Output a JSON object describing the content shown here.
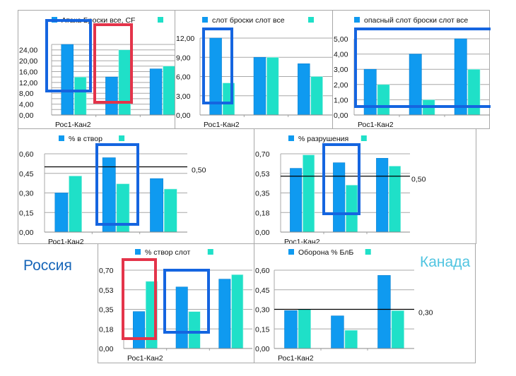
{
  "colors": {
    "series_primary": "#0f9af0",
    "series_secondary": "#1fe0c8",
    "highlight_blue": "#1565e0",
    "highlight_red": "#e4344a",
    "threshold": "#000000",
    "grid": "#a8a8a8",
    "russia_text": "#1565b8",
    "canada_text": "#4fc4e0"
  },
  "labels": {
    "russia": "Россия",
    "canada": "Канада"
  },
  "chart_data": [
    {
      "id": "attack",
      "type": "bar",
      "title": "Атака Броски все, CF",
      "legend": [
        "Атака Броски все, CF",
        ""
      ],
      "legend_position": "top",
      "categories": [
        "Рос1-Кан2",
        "",
        ""
      ],
      "category_label": "Рос1-Кан2",
      "series": [
        {
          "name": "Россия",
          "values": [
            26,
            14,
            17
          ]
        },
        {
          "name": "Канада",
          "values": [
            14,
            24,
            18
          ]
        }
      ],
      "ylim": [
        0,
        26
      ],
      "yticks": [
        0,
        4,
        8,
        12,
        16,
        20,
        24
      ],
      "ytick_labels": [
        "0,00",
        "4,00",
        "8,00",
        "12,00",
        "16,00",
        "20,00",
        "24,00"
      ],
      "grid_step": 2,
      "highlights": [
        {
          "color": "blue",
          "category": 0,
          "series": "primary"
        },
        {
          "color": "red",
          "category": 1,
          "series": "secondary"
        }
      ]
    },
    {
      "id": "slot_shots",
      "type": "bar",
      "title": "слот броски слот все",
      "legend": [
        "слот броски слот все",
        ""
      ],
      "legend_position": "top",
      "categories": [
        "Рос1-Кан2",
        "",
        ""
      ],
      "category_label": "Рос1-Кан2",
      "series": [
        {
          "name": "Россия",
          "values": [
            12,
            9,
            8
          ]
        },
        {
          "name": "Канада",
          "values": [
            5,
            9,
            6
          ]
        }
      ],
      "ylim": [
        0,
        12
      ],
      "yticks": [
        0,
        3,
        6,
        9,
        12
      ],
      "ytick_labels": [
        "0,00",
        "3,00",
        "6,00",
        "9,00",
        "12,00"
      ],
      "grid_step": 3,
      "highlights": [
        {
          "color": "blue",
          "category": 0,
          "series": "both"
        }
      ]
    },
    {
      "id": "dangerous_slot",
      "type": "bar",
      "title": "опасный слот  броски слот все",
      "legend": [
        "опасный слот  броски слот все",
        ""
      ],
      "legend_position": "top",
      "categories": [
        "Рос1-Кан2",
        "",
        ""
      ],
      "category_label": "Рос1-Кан2",
      "series": [
        {
          "name": "Россия",
          "values": [
            3,
            4,
            5
          ]
        },
        {
          "name": "Канада",
          "values": [
            2,
            1,
            3
          ]
        }
      ],
      "ylim": [
        0,
        5
      ],
      "yticks": [
        0,
        1,
        2,
        3,
        4,
        5
      ],
      "ytick_labels": [
        "0,00",
        "1,00",
        "2,00",
        "3,00",
        "4,00",
        "5,00"
      ],
      "grid_step": 1,
      "highlights": [
        {
          "color": "blue",
          "category": "all",
          "series": "both"
        }
      ]
    },
    {
      "id": "on_target",
      "type": "bar",
      "title": "% в створ",
      "legend": [
        "% в створ",
        ""
      ],
      "legend_position": "top",
      "categories": [
        "Рос1-Кан2",
        "",
        ""
      ],
      "category_label": "Рос1-Кан2",
      "series": [
        {
          "name": "Россия",
          "values": [
            0.3,
            0.57,
            0.41
          ]
        },
        {
          "name": "Канада",
          "values": [
            0.43,
            0.37,
            0.33
          ]
        }
      ],
      "ylim": [
        0,
        0.6
      ],
      "yticks": [
        0,
        0.15,
        0.3,
        0.45,
        0.6
      ],
      "ytick_labels": [
        "0,00",
        "0,15",
        "0,30",
        "0,45",
        "0,60"
      ],
      "threshold": 0.5,
      "threshold_label": "0,50",
      "highlights": [
        {
          "color": "blue",
          "category": 1,
          "series": "both"
        }
      ]
    },
    {
      "id": "destruction",
      "type": "bar",
      "title": "% разрушения",
      "legend": [
        "% разрушения",
        ""
      ],
      "legend_position": "top",
      "categories": [
        "Рос1-Кан2",
        "",
        ""
      ],
      "category_label": "Рос1-Кан2",
      "series": [
        {
          "name": "Россия",
          "values": [
            0.57,
            0.62,
            0.66
          ]
        },
        {
          "name": "Канада",
          "values": [
            0.69,
            0.42,
            0.59
          ]
        }
      ],
      "ylim": [
        0,
        0.7
      ],
      "yticks": [
        0,
        0.175,
        0.35,
        0.525,
        0.7
      ],
      "ytick_labels": [
        "0,00",
        "0,18",
        "0,35",
        "0,53",
        "0,70"
      ],
      "threshold": 0.5,
      "threshold_label": "0,50",
      "highlights": [
        {
          "color": "blue",
          "category": 1,
          "series": "both"
        }
      ]
    },
    {
      "id": "on_target_slot",
      "type": "bar",
      "title": "% створ слот",
      "legend": [
        "% створ слот",
        ""
      ],
      "legend_position": "top",
      "categories": [
        "Рос1-Кан2",
        "",
        ""
      ],
      "category_label": "Рос1-Кан2",
      "series": [
        {
          "name": "Россия",
          "values": [
            0.33,
            0.55,
            0.62
          ]
        },
        {
          "name": "Канада",
          "values": [
            0.6,
            0.33,
            0.66
          ]
        }
      ],
      "ylim": [
        0,
        0.7
      ],
      "yticks": [
        0,
        0.175,
        0.35,
        0.525,
        0.7
      ],
      "ytick_labels": [
        "0,00",
        "0,18",
        "0,35",
        "0,53",
        "0,70"
      ],
      "highlights": [
        {
          "color": "red",
          "category": 0,
          "series": "both"
        },
        {
          "color": "blue",
          "category": 1,
          "series": "both"
        }
      ]
    },
    {
      "id": "defense",
      "type": "bar",
      "title": "Оборона % БлБ",
      "legend": [
        "Оборона % БлБ",
        ""
      ],
      "legend_position": "top",
      "categories": [
        "Рос1-Кан2",
        "",
        ""
      ],
      "category_label": "Рос1-Кан2",
      "series": [
        {
          "name": "Россия",
          "values": [
            0.29,
            0.25,
            0.56
          ]
        },
        {
          "name": "Канада",
          "values": [
            0.3,
            0.14,
            0.29
          ]
        }
      ],
      "ylim": [
        0,
        0.6
      ],
      "yticks": [
        0,
        0.15,
        0.3,
        0.45,
        0.6
      ],
      "ytick_labels": [
        "0,00",
        "0,15",
        "0,30",
        "0,45",
        "0,60"
      ],
      "threshold": 0.3,
      "threshold_label": "0,30",
      "highlights": []
    }
  ]
}
